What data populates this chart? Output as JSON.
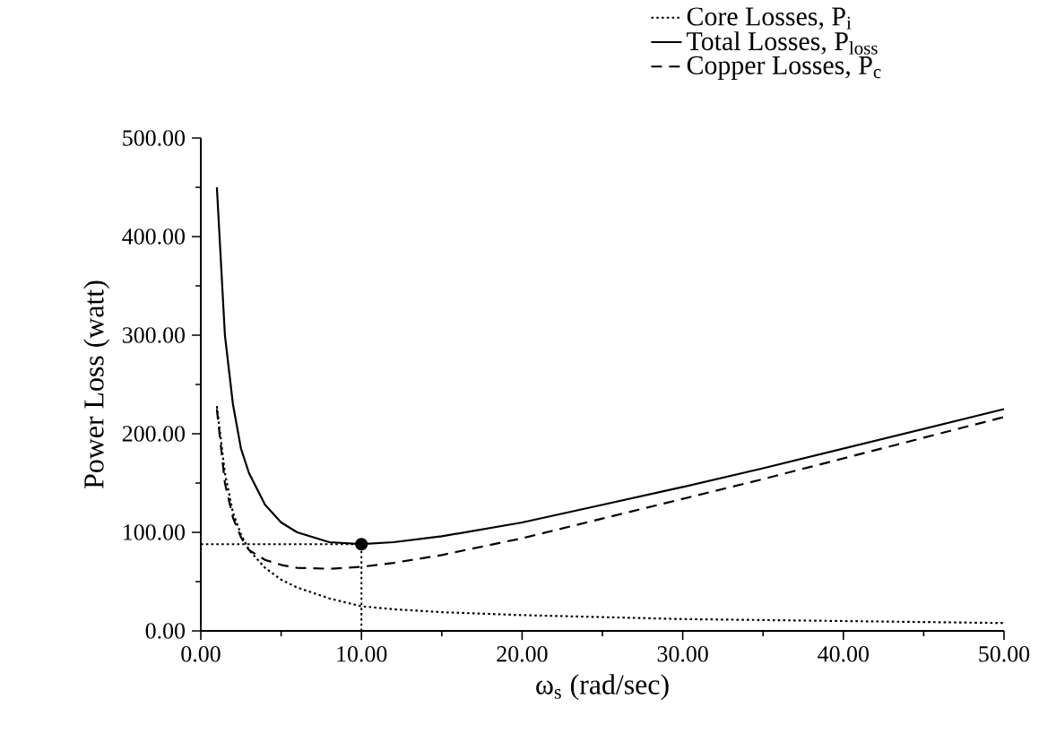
{
  "chart_data": {
    "type": "line",
    "xlabel": "ω$_{s}$ (rad/sec)",
    "ylabel": "Power Loss (watt)",
    "xlim": [
      0,
      50
    ],
    "ylim": [
      0,
      500
    ],
    "xticks": [
      {
        "value": 0,
        "label": "0.00"
      },
      {
        "value": 10,
        "label": "10.00"
      },
      {
        "value": 20,
        "label": "20.00"
      },
      {
        "value": 30,
        "label": "30.00"
      },
      {
        "value": 40,
        "label": "40.00"
      },
      {
        "value": 50,
        "label": "50.00"
      }
    ],
    "yticks": [
      {
        "value": 0,
        "label": "0.00"
      },
      {
        "value": 100,
        "label": "100.00"
      },
      {
        "value": 200,
        "label": "200.00"
      },
      {
        "value": 300,
        "label": "300.00"
      },
      {
        "value": 400,
        "label": "400.00"
      },
      {
        "value": 500,
        "label": "500.00"
      }
    ],
    "legend": "top right",
    "x": [
      1,
      1.5,
      2,
      2.5,
      3,
      4,
      5,
      6,
      8,
      10,
      12,
      15,
      20,
      25,
      30,
      35,
      40,
      45,
      50
    ],
    "series": [
      {
        "name": "Core Losses, P$_{i}$",
        "color": "#000000",
        "line_style": "dotted",
        "values": [
          228,
          160,
          120,
          98,
          82,
          64,
          52,
          44,
          33,
          25,
          22,
          19,
          16,
          14,
          12,
          11,
          10,
          9,
          8
        ]
      },
      {
        "name": "Total Losses, P$_{loss}$",
        "color": "#000000",
        "line_style": "solid",
        "values": [
          450,
          300,
          230,
          185,
          160,
          128,
          110,
          100,
          90,
          88,
          90,
          96,
          110,
          128,
          146,
          165,
          185,
          205,
          225
        ]
      },
      {
        "name": "Copper Losses, P$_{c}$",
        "color": "#000000",
        "line_style": "dashed",
        "values": [
          225,
          150,
          115,
          95,
          82,
          72,
          67,
          64,
          63,
          65,
          69,
          77,
          94,
          114,
          134,
          154,
          175,
          196,
          217
        ]
      },
      {
        "type": "scatter",
        "color": "#000000",
        "marker": "circle",
        "x": [
          10
        ],
        "values": [
          88
        ]
      }
    ],
    "ref_lines": [
      {
        "axis": "y",
        "value": 88,
        "color": "#000000",
        "line_style": "dotted"
      },
      {
        "axis": "x",
        "value": 10,
        "color": "#000000",
        "line_style": "dotted"
      }
    ]
  }
}
